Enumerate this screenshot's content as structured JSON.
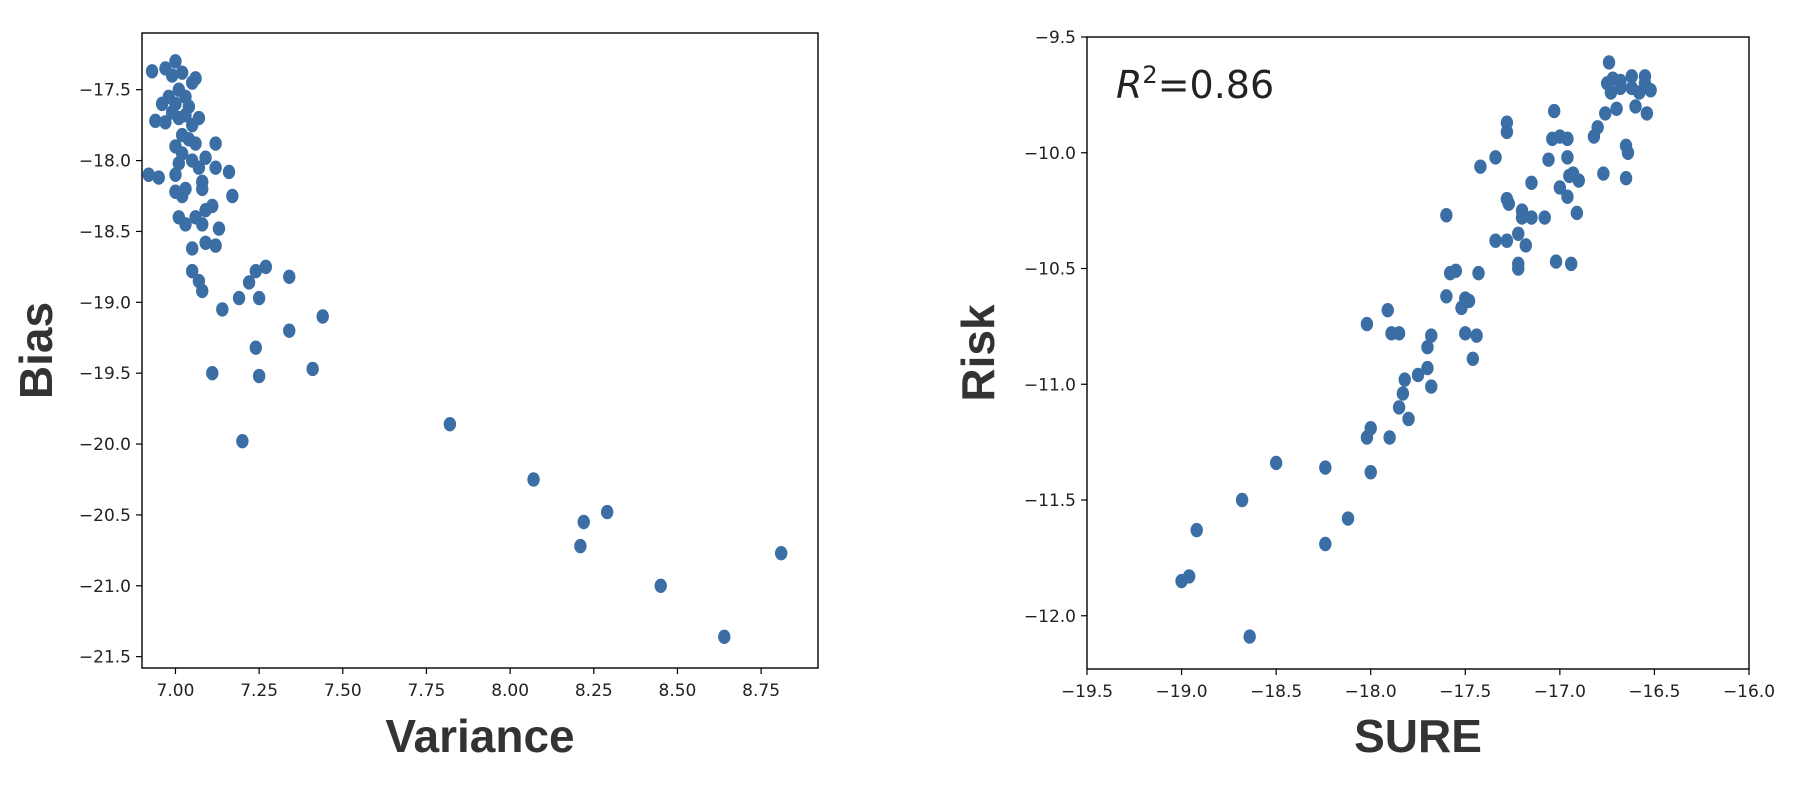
{
  "chart_data": [
    {
      "type": "scatter",
      "xlabel": "Variance",
      "ylabel": "Bias",
      "xlim": [
        6.9,
        8.92
      ],
      "ylim": [
        -21.58,
        -17.1
      ],
      "xticks": [
        7.0,
        7.25,
        7.5,
        7.75,
        8.0,
        8.25,
        8.5,
        8.75
      ],
      "xtick_labels": [
        "7.00",
        "7.25",
        "7.50",
        "7.75",
        "8.00",
        "8.25",
        "8.50",
        "8.75"
      ],
      "yticks": [
        -17.5,
        -18.0,
        -18.5,
        -19.0,
        -19.5,
        -20.0,
        -20.5,
        -21.0,
        -21.5
      ],
      "ytick_labels": [
        "−17.5",
        "−18.0",
        "−18.5",
        "−19.0",
        "−19.5",
        "−20.0",
        "−20.5",
        "−21.0",
        "−21.5"
      ],
      "grid": false,
      "marker_color": "#3a6ea5",
      "points": [
        [
          6.93,
          -17.37
        ],
        [
          6.97,
          -17.35
        ],
        [
          6.99,
          -17.4
        ],
        [
          7.0,
          -17.3
        ],
        [
          7.02,
          -17.38
        ],
        [
          7.05,
          -17.45
        ],
        [
          7.06,
          -17.42
        ],
        [
          6.96,
          -17.6
        ],
        [
          6.98,
          -17.55
        ],
        [
          7.0,
          -17.6
        ],
        [
          7.01,
          -17.5
        ],
        [
          7.03,
          -17.55
        ],
        [
          7.04,
          -17.62
        ],
        [
          6.94,
          -17.72
        ],
        [
          6.97,
          -17.73
        ],
        [
          6.99,
          -17.66
        ],
        [
          7.01,
          -17.7
        ],
        [
          7.03,
          -17.68
        ],
        [
          7.05,
          -17.75
        ],
        [
          7.07,
          -17.7
        ],
        [
          7.02,
          -17.82
        ],
        [
          7.04,
          -17.85
        ],
        [
          7.06,
          -17.88
        ],
        [
          7.0,
          -17.9
        ],
        [
          7.02,
          -17.95
        ],
        [
          7.05,
          -18.0
        ],
        [
          7.07,
          -18.05
        ],
        [
          7.09,
          -17.98
        ],
        [
          7.12,
          -17.88
        ],
        [
          7.01,
          -18.02
        ],
        [
          7.0,
          -18.1
        ],
        [
          6.92,
          -18.1
        ],
        [
          6.95,
          -18.12
        ],
        [
          7.08,
          -18.15
        ],
        [
          7.12,
          -18.05
        ],
        [
          7.16,
          -18.08
        ],
        [
          7.0,
          -18.22
        ],
        [
          7.02,
          -18.25
        ],
        [
          7.03,
          -18.2
        ],
        [
          7.08,
          -18.2
        ],
        [
          7.17,
          -18.25
        ],
        [
          7.06,
          -18.4
        ],
        [
          7.09,
          -18.35
        ],
        [
          7.11,
          -18.32
        ],
        [
          7.01,
          -18.4
        ],
        [
          7.03,
          -18.45
        ],
        [
          7.08,
          -18.45
        ],
        [
          7.13,
          -18.48
        ],
        [
          7.05,
          -18.62
        ],
        [
          7.09,
          -18.58
        ],
        [
          7.12,
          -18.6
        ],
        [
          7.05,
          -18.78
        ],
        [
          7.07,
          -18.85
        ],
        [
          7.08,
          -18.92
        ],
        [
          7.22,
          -18.86
        ],
        [
          7.24,
          -18.78
        ],
        [
          7.27,
          -18.75
        ],
        [
          7.34,
          -18.82
        ],
        [
          7.19,
          -18.97
        ],
        [
          7.25,
          -18.97
        ],
        [
          7.14,
          -19.05
        ],
        [
          7.44,
          -19.1
        ],
        [
          7.34,
          -19.2
        ],
        [
          7.24,
          -19.32
        ],
        [
          7.11,
          -19.5
        ],
        [
          7.25,
          -19.52
        ],
        [
          7.41,
          -19.47
        ],
        [
          7.2,
          -19.98
        ],
        [
          7.82,
          -19.86
        ],
        [
          8.07,
          -20.25
        ],
        [
          8.22,
          -20.55
        ],
        [
          8.29,
          -20.48
        ],
        [
          8.21,
          -20.72
        ],
        [
          8.45,
          -21.0
        ],
        [
          8.64,
          -21.36
        ],
        [
          8.81,
          -20.77
        ]
      ]
    },
    {
      "type": "scatter",
      "xlabel": "SURE",
      "ylabel": "Risk",
      "xlim": [
        -19.5,
        -16.0
      ],
      "ylim": [
        -12.23,
        -9.5
      ],
      "xticks": [
        -19.5,
        -19.0,
        -18.5,
        -18.0,
        -17.5,
        -17.0,
        -16.5,
        -16.0
      ],
      "xtick_labels": [
        "−19.5",
        "−19.0",
        "−18.5",
        "−18.0",
        "−17.5",
        "−17.0",
        "−16.5",
        "−16.0"
      ],
      "yticks": [
        -9.5,
        -10.0,
        -10.5,
        -11.0,
        -11.5,
        -12.0
      ],
      "ytick_labels": [
        "−9.5",
        "−10.0",
        "−10.5",
        "−11.0",
        "−11.5",
        "−12.0"
      ],
      "grid": false,
      "marker_color": "#3a6ea5",
      "annotation": {
        "prefix": "R",
        "superscript": "2",
        "suffix": "=0.86"
      },
      "points": [
        [
          -19.0,
          -11.85
        ],
        [
          -18.96,
          -11.83
        ],
        [
          -18.92,
          -11.63
        ],
        [
          -18.68,
          -11.5
        ],
        [
          -18.64,
          -12.09
        ],
        [
          -18.5,
          -11.34
        ],
        [
          -18.24,
          -11.36
        ],
        [
          -18.24,
          -11.69
        ],
        [
          -18.12,
          -11.58
        ],
        [
          -18.0,
          -11.38
        ],
        [
          -18.02,
          -11.23
        ],
        [
          -18.0,
          -11.19
        ],
        [
          -17.9,
          -11.23
        ],
        [
          -17.85,
          -11.1
        ],
        [
          -17.83,
          -11.04
        ],
        [
          -17.8,
          -11.15
        ],
        [
          -17.82,
          -10.98
        ],
        [
          -17.75,
          -10.96
        ],
        [
          -17.7,
          -10.93
        ],
        [
          -17.68,
          -11.01
        ],
        [
          -17.7,
          -10.84
        ],
        [
          -17.68,
          -10.79
        ],
        [
          -18.02,
          -10.74
        ],
        [
          -17.91,
          -10.68
        ],
        [
          -17.89,
          -10.78
        ],
        [
          -17.85,
          -10.78
        ],
        [
          -17.6,
          -10.62
        ],
        [
          -17.52,
          -10.67
        ],
        [
          -17.5,
          -10.63
        ],
        [
          -17.48,
          -10.64
        ],
        [
          -17.5,
          -10.78
        ],
        [
          -17.44,
          -10.79
        ],
        [
          -17.46,
          -10.89
        ],
        [
          -17.58,
          -10.52
        ],
        [
          -17.55,
          -10.51
        ],
        [
          -17.43,
          -10.52
        ],
        [
          -17.22,
          -10.48
        ],
        [
          -17.22,
          -10.5
        ],
        [
          -17.02,
          -10.47
        ],
        [
          -16.94,
          -10.48
        ],
        [
          -17.34,
          -10.38
        ],
        [
          -17.28,
          -10.38
        ],
        [
          -17.18,
          -10.4
        ],
        [
          -17.22,
          -10.35
        ],
        [
          -17.2,
          -10.28
        ],
        [
          -17.15,
          -10.28
        ],
        [
          -17.08,
          -10.28
        ],
        [
          -17.2,
          -10.25
        ],
        [
          -17.0,
          -10.15
        ],
        [
          -16.96,
          -10.19
        ],
        [
          -16.91,
          -10.26
        ],
        [
          -17.6,
          -10.27
        ],
        [
          -17.28,
          -10.2
        ],
        [
          -17.27,
          -10.22
        ],
        [
          -17.15,
          -10.13
        ],
        [
          -16.95,
          -10.1
        ],
        [
          -16.9,
          -10.12
        ],
        [
          -16.93,
          -10.09
        ],
        [
          -17.42,
          -10.06
        ],
        [
          -17.34,
          -10.02
        ],
        [
          -17.06,
          -10.03
        ],
        [
          -16.96,
          -10.02
        ],
        [
          -16.77,
          -10.09
        ],
        [
          -16.65,
          -10.11
        ],
        [
          -16.64,
          -10.0
        ],
        [
          -16.65,
          -9.97
        ],
        [
          -17.0,
          -9.93
        ],
        [
          -16.96,
          -9.94
        ],
        [
          -16.82,
          -9.93
        ],
        [
          -17.04,
          -9.94
        ],
        [
          -16.8,
          -9.89
        ],
        [
          -17.28,
          -9.91
        ],
        [
          -17.28,
          -9.87
        ],
        [
          -17.03,
          -9.82
        ],
        [
          -16.76,
          -9.83
        ],
        [
          -16.7,
          -9.81
        ],
        [
          -16.6,
          -9.8
        ],
        [
          -16.54,
          -9.83
        ],
        [
          -16.75,
          -9.7
        ],
        [
          -16.72,
          -9.68
        ],
        [
          -16.73,
          -9.74
        ],
        [
          -16.68,
          -9.72
        ],
        [
          -16.62,
          -9.72
        ],
        [
          -16.58,
          -9.74
        ],
        [
          -16.55,
          -9.7
        ],
        [
          -16.52,
          -9.73
        ],
        [
          -16.74,
          -9.61
        ],
        [
          -16.68,
          -9.69
        ],
        [
          -16.62,
          -9.67
        ],
        [
          -16.55,
          -9.67
        ]
      ]
    }
  ]
}
